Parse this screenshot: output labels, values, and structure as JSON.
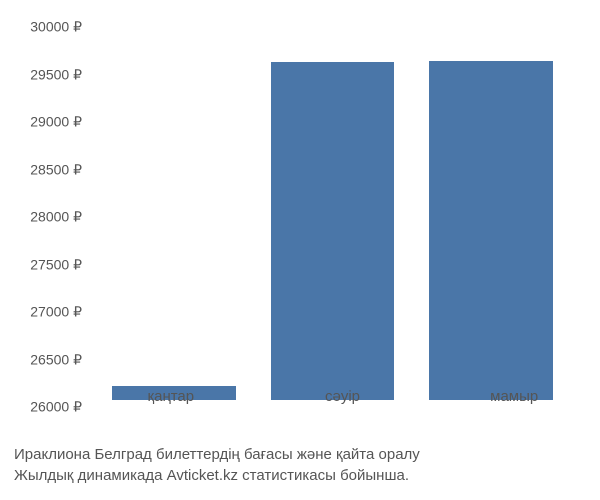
{
  "chart": {
    "type": "bar",
    "ylim": [
      26000,
      30000
    ],
    "ytick_step": 500,
    "y_ticks": [
      26000,
      26500,
      27000,
      27500,
      28000,
      28500,
      29000,
      29500,
      30000
    ],
    "y_tick_labels": [
      "26000 ₽",
      "26500 ₽",
      "27000 ₽",
      "27500 ₽",
      "28000 ₽",
      "28500 ₽",
      "29000 ₽",
      "29500 ₽",
      "30000 ₽"
    ],
    "categories": [
      "қаңтар",
      "сәуір",
      "мамыр"
    ],
    "values": [
      26150,
      29560,
      29570
    ],
    "bar_colors": [
      "#4a76a8",
      "#4a76a8",
      "#4a76a8"
    ],
    "bar_width": 0.78,
    "background_color": "#ffffff",
    "axis_text_color": "#555555",
    "axis_fontsize": 14
  },
  "caption": {
    "line1": "Ираклиона Белград билеттердің бағасы және қайта оралу",
    "line2": "Жылдық динамикада Avticket.kz статистикасы бойынша.",
    "fontsize": 15,
    "color": "#555555"
  }
}
